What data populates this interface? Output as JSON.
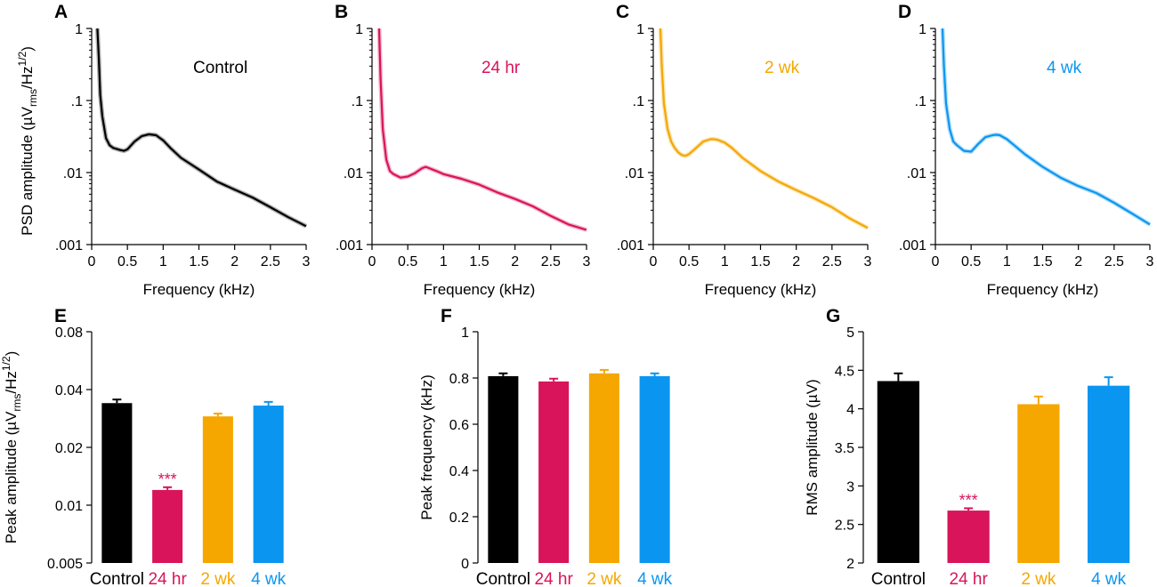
{
  "figure": {
    "colors": {
      "control": "#000000",
      "24hr": "#d9145a",
      "2wk": "#f5a700",
      "4wk": "#0a96f0",
      "axis": "#000000"
    }
  },
  "chart_data": [
    {
      "id": "A",
      "panel_label": "A",
      "type": "line",
      "series_key": "control",
      "inset_label": "Control",
      "xlabel": "Frequency (kHz)",
      "ylabel_main": "PSD amplitude (µV",
      "ylabel_sub": "rms",
      "ylabel_after": "/Hz",
      "ylabel_sup": "1/2",
      "ylabel_close": ")",
      "xlim": [
        0,
        3
      ],
      "ylim": [
        0.001,
        1
      ],
      "yscale": "log",
      "x_ticks": [
        0,
        0.5,
        1,
        1.5,
        2,
        2.5,
        3
      ],
      "x_tick_labels": [
        "0",
        "0.5",
        "1",
        "1.5",
        "2",
        "2.5",
        "3"
      ],
      "y_ticks": [
        0.001,
        0.01,
        0.1,
        1
      ],
      "y_tick_labels": [
        ".001",
        ".01",
        ".1",
        "1"
      ],
      "x": [
        0.08,
        0.1,
        0.12,
        0.15,
        0.2,
        0.25,
        0.3,
        0.4,
        0.45,
        0.5,
        0.6,
        0.7,
        0.8,
        0.9,
        1.0,
        1.1,
        1.25,
        1.5,
        1.75,
        2.0,
        2.25,
        2.5,
        2.75,
        3.0
      ],
      "y": [
        1.0,
        0.4,
        0.12,
        0.06,
        0.03,
        0.024,
        0.022,
        0.0205,
        0.02,
        0.021,
        0.027,
        0.032,
        0.034,
        0.033,
        0.028,
        0.022,
        0.016,
        0.011,
        0.0075,
        0.0058,
        0.0045,
        0.0033,
        0.0024,
        0.0018
      ]
    },
    {
      "id": "B",
      "panel_label": "B",
      "type": "line",
      "series_key": "24hr",
      "inset_label": "24 hr",
      "xlabel": "Frequency (kHz)",
      "xlim": [
        0,
        3
      ],
      "ylim": [
        0.001,
        1
      ],
      "yscale": "log",
      "x_ticks": [
        0,
        0.5,
        1,
        1.5,
        2,
        2.5,
        3
      ],
      "x_tick_labels": [
        "0",
        "0.5",
        "1",
        "1.5",
        "2",
        "2.5",
        "3"
      ],
      "y_ticks": [
        0.001,
        0.01,
        0.1,
        1
      ],
      "y_tick_labels": [
        ".001",
        ".01",
        ".1",
        "1"
      ],
      "x": [
        0.1,
        0.12,
        0.15,
        0.2,
        0.25,
        0.3,
        0.4,
        0.5,
        0.6,
        0.7,
        0.75,
        0.8,
        0.9,
        1.0,
        1.25,
        1.5,
        1.75,
        2.0,
        2.25,
        2.5,
        2.75,
        3.0
      ],
      "y": [
        1.0,
        0.2,
        0.04,
        0.015,
        0.0105,
        0.0095,
        0.0085,
        0.0088,
        0.0098,
        0.0115,
        0.012,
        0.0115,
        0.0105,
        0.0095,
        0.0082,
        0.0068,
        0.0053,
        0.0043,
        0.0034,
        0.0025,
        0.0019,
        0.0016
      ]
    },
    {
      "id": "C",
      "panel_label": "C",
      "type": "line",
      "series_key": "2wk",
      "inset_label": "2 wk",
      "xlabel": "Frequency (kHz)",
      "xlim": [
        0,
        3
      ],
      "ylim": [
        0.001,
        1
      ],
      "yscale": "log",
      "x_ticks": [
        0,
        0.5,
        1,
        1.5,
        2,
        2.5,
        3
      ],
      "x_tick_labels": [
        "0",
        "0.5",
        "1",
        "1.5",
        "2",
        "2.5",
        "3"
      ],
      "y_ticks": [
        0.001,
        0.01,
        0.1,
        1
      ],
      "y_tick_labels": [
        ".001",
        ".01",
        ".1",
        "1"
      ],
      "x": [
        0.1,
        0.12,
        0.15,
        0.2,
        0.25,
        0.3,
        0.35,
        0.4,
        0.45,
        0.5,
        0.6,
        0.7,
        0.8,
        0.85,
        0.9,
        1.0,
        1.1,
        1.25,
        1.5,
        1.75,
        2.0,
        2.25,
        2.5,
        2.75,
        3.0
      ],
      "y": [
        1.0,
        0.3,
        0.09,
        0.04,
        0.027,
        0.022,
        0.019,
        0.0175,
        0.017,
        0.018,
        0.022,
        0.027,
        0.029,
        0.029,
        0.0285,
        0.026,
        0.022,
        0.016,
        0.0105,
        0.0075,
        0.0057,
        0.0044,
        0.0033,
        0.0023,
        0.0017
      ]
    },
    {
      "id": "D",
      "panel_label": "D",
      "type": "line",
      "series_key": "4wk",
      "inset_label": "4 wk",
      "xlabel": "Frequency (kHz)",
      "xlim": [
        0,
        3
      ],
      "ylim": [
        0.001,
        1
      ],
      "yscale": "log",
      "x_ticks": [
        0,
        0.5,
        1,
        1.5,
        2,
        2.5,
        3
      ],
      "x_tick_labels": [
        "0",
        "0.5",
        "1",
        "1.5",
        "2",
        "2.5",
        "3"
      ],
      "y_ticks": [
        0.001,
        0.01,
        0.1,
        1
      ],
      "y_tick_labels": [
        ".001",
        ".01",
        ".1",
        "1"
      ],
      "x": [
        0.1,
        0.12,
        0.15,
        0.2,
        0.25,
        0.3,
        0.4,
        0.5,
        0.6,
        0.7,
        0.8,
        0.85,
        0.9,
        1.0,
        1.1,
        1.25,
        1.5,
        1.75,
        2.0,
        2.25,
        2.5,
        2.75,
        3.0
      ],
      "y": [
        1.0,
        0.3,
        0.09,
        0.04,
        0.027,
        0.024,
        0.02,
        0.0195,
        0.025,
        0.031,
        0.033,
        0.0335,
        0.033,
        0.029,
        0.024,
        0.018,
        0.012,
        0.0085,
        0.0065,
        0.0052,
        0.0038,
        0.0027,
        0.0019
      ]
    },
    {
      "id": "E",
      "panel_label": "E",
      "type": "bar",
      "ylabel_main": "Peak amplitude  (µV",
      "ylabel_sub": "rms",
      "ylabel_after": "/Hz",
      "ylabel_sup": "1/2",
      "ylabel_close": ")",
      "yscale": "log",
      "ylim": [
        0.005,
        0.08
      ],
      "y_ticks": [
        0.005,
        0.01,
        0.02,
        0.04,
        0.08
      ],
      "y_tick_labels": [
        "0.005",
        "0.01",
        "0.02",
        "0.04",
        "0.08"
      ],
      "categories": [
        "Control",
        "24 hr",
        "2 wk",
        "4 wk"
      ],
      "series_keys": [
        "control",
        "24hr",
        "2wk",
        "4wk"
      ],
      "values": [
        0.034,
        0.012,
        0.029,
        0.033
      ],
      "errors": [
        0.0015,
        0.0004,
        0.001,
        0.0015
      ],
      "annotations": [
        {
          "category": "24 hr",
          "text": "***"
        }
      ]
    },
    {
      "id": "F",
      "panel_label": "F",
      "type": "bar",
      "ylabel": "Peak frequency (kHz)",
      "yscale": "linear",
      "ylim": [
        0,
        1
      ],
      "y_ticks": [
        0,
        0.2,
        0.4,
        0.6,
        0.8,
        1
      ],
      "y_tick_labels": [
        "0",
        "0.2",
        "0.4",
        "0.6",
        "0.8",
        "1"
      ],
      "categories": [
        "Control",
        "24 hr",
        "2 wk",
        "4 wk"
      ],
      "series_keys": [
        "control",
        "24hr",
        "2wk",
        "4wk"
      ],
      "values": [
        0.808,
        0.785,
        0.82,
        0.808
      ],
      "errors": [
        0.012,
        0.012,
        0.015,
        0.012
      ],
      "annotations": []
    },
    {
      "id": "G",
      "panel_label": "G",
      "type": "bar",
      "ylabel": "RMS amplitude  (µV)",
      "yscale": "linear",
      "ylim": [
        2,
        5
      ],
      "y_ticks": [
        2,
        2.5,
        3,
        3.5,
        4,
        4.5,
        5
      ],
      "y_tick_labels": [
        "2",
        "2.5",
        "3",
        "3.5",
        "4",
        "4.5",
        "5"
      ],
      "categories": [
        "Control",
        "24 hr",
        "2 wk",
        "4 wk"
      ],
      "series_keys": [
        "control",
        "24hr",
        "2wk",
        "4wk"
      ],
      "values": [
        4.36,
        2.68,
        4.06,
        4.3
      ],
      "errors": [
        0.1,
        0.03,
        0.1,
        0.11
      ],
      "annotations": [
        {
          "category": "24 hr",
          "text": "***"
        }
      ]
    }
  ]
}
